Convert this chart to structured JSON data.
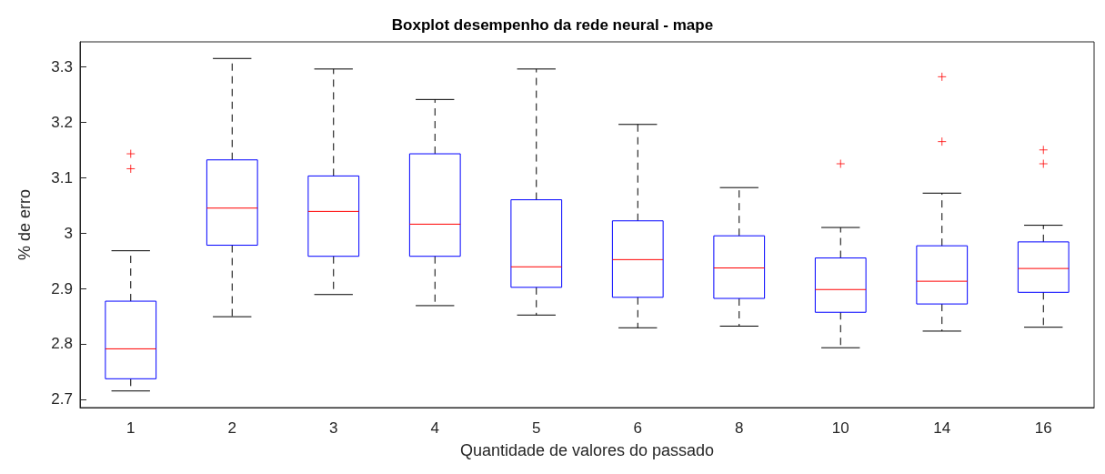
{
  "chart_data": {
    "type": "box",
    "title": "Boxplot desempenho da rede neural - mape",
    "xlabel": "Quantidade de valores do passado",
    "ylabel": "% de erro",
    "categories": [
      "1",
      "2",
      "3",
      "4",
      "5",
      "6",
      "8",
      "10",
      "14",
      "16"
    ],
    "ylim": [
      2.685,
      3.345
    ],
    "yticks": [
      2.7,
      2.8,
      2.9,
      3,
      3.1,
      3.2,
      3.3
    ],
    "series": [
      {
        "color": "#0000ff",
        "boxes": [
          {
            "low": 2.715,
            "q1": 2.737,
            "median": 2.791,
            "q3": 2.877,
            "high": 2.968,
            "outliers": [
              3.143,
              3.116
            ]
          },
          {
            "low": 2.849,
            "q1": 2.978,
            "median": 3.045,
            "q3": 3.132,
            "high": 3.315
          },
          {
            "low": 2.889,
            "q1": 2.958,
            "median": 3.039,
            "q3": 3.103,
            "high": 3.296
          },
          {
            "low": 2.869,
            "q1": 2.958,
            "median": 3.016,
            "q3": 3.143,
            "high": 3.241
          },
          {
            "low": 2.852,
            "q1": 2.902,
            "median": 2.939,
            "q3": 3.06,
            "high": 3.296
          },
          {
            "low": 2.829,
            "q1": 2.884,
            "median": 2.952,
            "q3": 3.022,
            "high": 3.196
          },
          {
            "low": 2.832,
            "q1": 2.882,
            "median": 2.937,
            "q3": 2.995,
            "high": 3.082
          },
          {
            "low": 2.793,
            "q1": 2.857,
            "median": 2.898,
            "q3": 2.955,
            "high": 3.01,
            "outliers": [
              3.125
            ]
          },
          {
            "low": 2.823,
            "q1": 2.872,
            "median": 2.913,
            "q3": 2.977,
            "high": 3.072,
            "outliers": [
              3.282,
              3.165
            ]
          },
          {
            "low": 2.83,
            "q1": 2.893,
            "median": 2.936,
            "q3": 2.984,
            "high": 3.014,
            "outliers": [
              3.15,
              3.125
            ]
          }
        ]
      }
    ]
  }
}
